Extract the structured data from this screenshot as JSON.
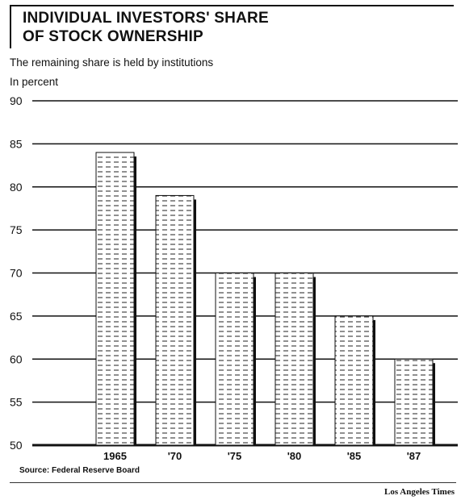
{
  "title_lines": [
    "INDIVIDUAL INVESTORS' SHARE",
    "OF STOCK OWNERSHIP"
  ],
  "subtitle": "The remaining share is held by institutions",
  "unit_label": "In percent",
  "source": "Source: Federal Reserve Board",
  "credit": "Los Angeles Times",
  "chart_data": {
    "type": "bar",
    "title": "INDIVIDUAL INVESTORS' SHARE OF STOCK OWNERSHIP",
    "subtitle": "The remaining share is held by institutions",
    "ylabel": "In percent",
    "xlabel": "",
    "categories": [
      "1965",
      "'70",
      "'75",
      "'80",
      "'85",
      "'87"
    ],
    "values": [
      84,
      79,
      70,
      70,
      65,
      60
    ],
    "ylim": [
      50,
      90
    ],
    "yticks": [
      90,
      85,
      80,
      75,
      70,
      65,
      60,
      55,
      50
    ],
    "grid": true,
    "bar_color": "#ffffff",
    "pattern": "dashed-horizontal"
  }
}
